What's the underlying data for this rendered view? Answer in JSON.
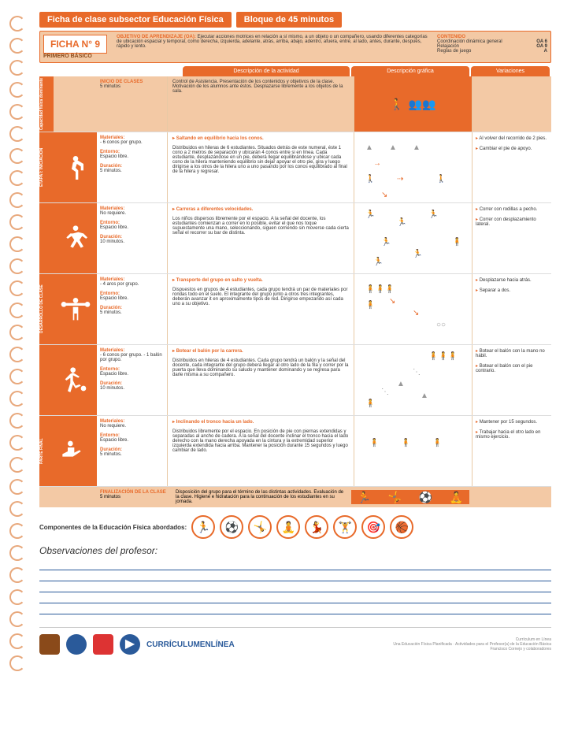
{
  "header": {
    "title_left": "Ficha de clase subsector Educación Física",
    "title_right": "Bloque de 45 minutos",
    "ficha_num": "FICHA N° 9",
    "ficha_sub": "PRIMERO BÁSICO",
    "obj_label": "OBJETIVO DE APRENDIZAJE (OA):",
    "obj_text": "Ejecutar acciones motrices en relación a sí mismo, a un objeto o un compañero, usando diferentes categorías de ubicación espacial y temporal, como derecha, izquierda, adelante, atrás, arriba, abajo, adentro, afuera, entre, al lado, antes, durante, después, rápido y lento.",
    "cont_label": "CONTENIDO",
    "cont_items": [
      {
        "k": "Coordinación dinámica general",
        "v": "OA 6"
      },
      {
        "k": "Relajación",
        "v": "OA 9"
      },
      {
        "k": "Reglas de juego",
        "v": "A"
      }
    ]
  },
  "tabs": {
    "t1": "Descripción de la actividad",
    "t2": "Descripción gráfica",
    "t3": "Variaciones"
  },
  "row_head": {
    "side": "Capacidad física dominante",
    "m_label": "INICIO DE CLASES",
    "m_sub": "5 minutos",
    "desc": "Control de Asistencia. Presentación de los contenidos y objetivos de la clase. Motivación de los alumnos ante éstos. Desplazarse libremente a los objetos de la sala."
  },
  "rows": [
    {
      "side": "ETAPA I: INICIACIÓN",
      "mat_label": "Materiales:",
      "mat": "- 6 conos por grupo.",
      "ent_label": "Entorno:",
      "ent": "Espacio libre.",
      "dur_label": "Duración:",
      "dur": "5 minutos.",
      "title": "Saltando en equilibrio hacia los conos.",
      "desc": "Distribuidos en hileras de 6 estudiantes. Situados detrás de este numeral, éste 1 cono a 2 metros de separación y ubicarán 4 conos entre si en línea. Cada estudiante, desplazándose en un pie, deberá llegar equilibrándose y ubicar cada cono de la hilera manteniendo equilibrio sin dejar apoyar el otro pie, gira y luego dirigirse a los otros de la hilera uno a uno pasando por los conos equilibrado al final de la hilera y regresar.",
      "var1": "Al volver del recorrido de 2 pies.",
      "var2": "Cambiar el pie de apoyo."
    },
    {
      "side": "",
      "mat_label": "Materiales:",
      "mat": "No requiere.",
      "ent_label": "Entorno:",
      "ent": "Espacio libre.",
      "dur_label": "Duración:",
      "dur": "10 minutos.",
      "title": "Carreras a diferentes velocidades.",
      "desc": "Los niños dispersos libremente por el espacio. A la señal del docente, los estudiantes comienzan a correr en lo posible, evitar el que nos toque supuestamente una mano, seleccionando, siguen corriendo sin moverse cada cierta señal el recorrer su bar de distinta.",
      "var1": "Correr con rodillas a pecho.",
      "var2": "Correr con desplazamiento lateral."
    },
    {
      "side": "DESARROLLO DE CLASE",
      "mat_label": "Materiales:",
      "mat": "- 4 aros por grupo.",
      "ent_label": "Entorno:",
      "ent": "Espacio libre.",
      "dur_label": "Duración:",
      "dur": "5 minutos.",
      "title": "Transporte del grupo en salto y vuelta.",
      "desc": "Dispuestos en grupos de 4 estudiantes, cada grupo tendrá un par de materiales por rondas todo en el suelo. El integrante del grupo junto a otros tres integrantes, deberán avanzar it en aproximamente tipos de red. Dirigirse empezando así cada uno a su objetivo.",
      "var1": "Desplazarse hacia atrás.",
      "var2": "Separar a dos."
    },
    {
      "side": "",
      "mat_label": "Materiales:",
      "mat": "- 6 conos por grupo. - 1 balón por grupo.",
      "ent_label": "Entorno:",
      "ent": "Espacio libre.",
      "dur_label": "Duración:",
      "dur": "10 minutos.",
      "title": "Botear el balón por la carrera.",
      "desc": "Distribuidos en hileras de 4 estudiantes. Cada grupo tendrá un balón y la señal del docente, cada integrante del grupo deberá llegar al otro lado de la fila y correr por la puerta que lleva dominando su saludo y mantener dominando y se regresa para darle misma a su compañero.",
      "var1": "Botear el balón con la mano no hábil.",
      "var2": "Botear el balón con el pie contrario."
    },
    {
      "side": "PARTE FINAL",
      "mat_label": "Materiales:",
      "mat": "No requiere.",
      "ent_label": "Entorno:",
      "ent": "Espacio libre.",
      "dur_label": "Duración:",
      "dur": "5 minutos.",
      "title": "Inclinando el tronco hacia un lado.",
      "desc": "Distribuidos libremente por el espacio. En posición de pie con piernas extendidas y separadas al ancho de cadera. A la señal del docente inclinar el tronco hacia el lado derecho con la mano derecha apoyada en la cintura y la extremidad superior izquierda extendida hacia arriba. Mantener la posición durante 15 segundos y luego cambiar de lado.",
      "var1": "Mantener por 15 segundos.",
      "var2": "Trabajar hacia el otro lado en mismo ejercicio."
    }
  ],
  "final": {
    "label": "FINALIZACIÓN DE LA CLASE",
    "time": "5 minutos",
    "text": "Disposición del grupo para el término de las distintas actividades. Evaluación de la clase. Higiene e hidratación para la continuación de los estudiantes en su jornada."
  },
  "comp_label": "Componentes de la Educación Física abordados:",
  "obs_label": "Observaciones del profesor:",
  "footer": {
    "brand": "CURRÍCULUMENLÍNEA",
    "right1": "Currículum en Línea",
    "right2": "Una Educación Física Planificada · Actividades para el Profesor(a) de la Educación Básica",
    "right3": "Francisco Cornejo y colaboradores"
  },
  "colors": {
    "orange": "#e86a2a",
    "light": "#f3c9a5",
    "blue": "#2a5a9a"
  }
}
